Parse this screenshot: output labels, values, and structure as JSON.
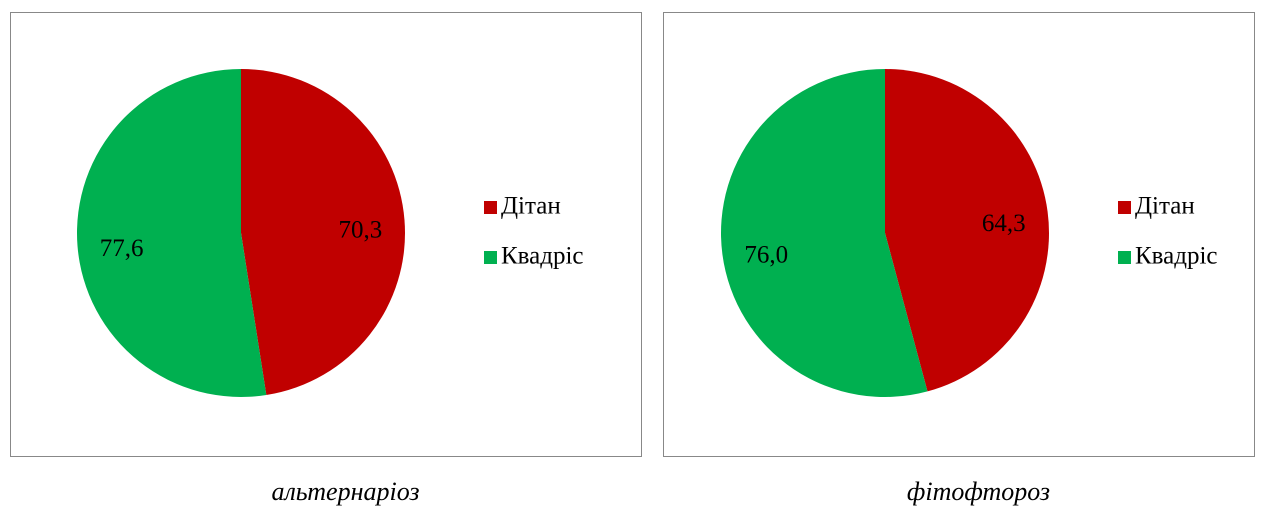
{
  "chart_data": [
    {
      "type": "pie",
      "title": "альтернаріоз",
      "legend": "right",
      "categories": [
        "Дітан",
        "Квадріс"
      ],
      "values": [
        70.3,
        77.6
      ],
      "value_labels": [
        "70,3",
        "77,6"
      ],
      "colors": [
        "#c00000",
        "#00b050"
      ]
    },
    {
      "type": "pie",
      "title": "фітофтороз",
      "legend": "right",
      "categories": [
        "Дітан",
        "Квадріс"
      ],
      "values": [
        64.3,
        76.0
      ],
      "value_labels": [
        "64,3",
        "76,0"
      ],
      "colors": [
        "#c00000",
        "#00b050"
      ]
    }
  ]
}
